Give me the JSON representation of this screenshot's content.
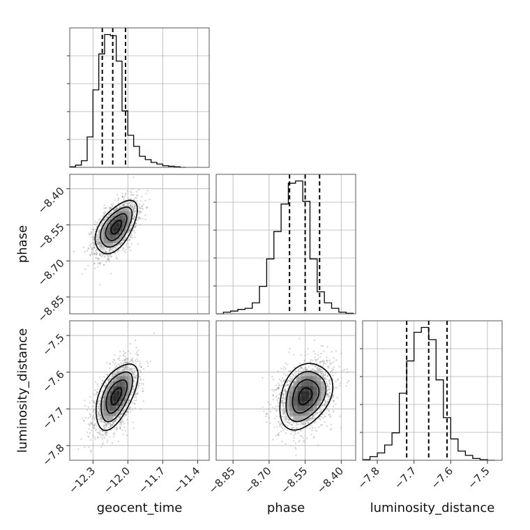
{
  "chart_data": {
    "type": "corner",
    "parameters": [
      {
        "name": "geocent_time",
        "label": "geocent_time",
        "range": [
          -12.5,
          -11.3
        ],
        "ticks": [
          -12.3,
          -12.0,
          -11.7,
          -11.4
        ],
        "tick_labels": [
          "−12.3",
          "−12.0",
          "−11.7",
          "−11.4"
        ],
        "hist_bin_edges": [
          -12.5,
          -12.45,
          -12.4,
          -12.35,
          -12.3,
          -12.25,
          -12.2,
          -12.15,
          -12.1,
          -12.05,
          -12.0,
          -11.95,
          -11.9,
          -11.85,
          -11.8,
          -11.75,
          -11.7,
          -11.65,
          -11.6,
          -11.55,
          -11.5
        ],
        "hist_values": [
          1,
          4,
          12,
          55,
          140,
          205,
          240,
          238,
          192,
          102,
          58,
          38,
          20,
          14,
          9,
          6,
          3,
          2,
          1,
          0
        ],
        "quantiles": [
          -12.22,
          -12.13,
          -12.02
        ]
      },
      {
        "name": "phase",
        "label": "phase",
        "range": [
          -8.92,
          -8.34
        ],
        "ticks": [
          -8.85,
          -8.7,
          -8.55,
          -8.4
        ],
        "tick_labels": [
          "−8.85",
          "−8.70",
          "−8.55",
          "−8.40"
        ],
        "hist_bin_edges": [
          -8.92,
          -8.89,
          -8.86,
          -8.83,
          -8.8,
          -8.77,
          -8.74,
          -8.71,
          -8.68,
          -8.65,
          -8.62,
          -8.59,
          -8.56,
          -8.53,
          -8.5,
          -8.47,
          -8.44,
          -8.41,
          -8.38,
          -8.35
        ],
        "hist_values": [
          0,
          3,
          5,
          8,
          10,
          20,
          50,
          100,
          150,
          200,
          238,
          242,
          205,
          100,
          40,
          20,
          10,
          3,
          1
        ],
        "quantiles": [
          -8.615,
          -8.55,
          -8.49
        ]
      },
      {
        "name": "luminosity_distance",
        "label": "luminosity_distance",
        "range": [
          -7.84,
          -7.46
        ],
        "ticks": [
          -7.8,
          -7.7,
          -7.6,
          -7.5
        ],
        "tick_labels": [
          "−7.8",
          "−7.7",
          "−7.6",
          "−7.5"
        ],
        "hist_bin_edges": [
          -7.84,
          -7.82,
          -7.8,
          -7.78,
          -7.76,
          -7.74,
          -7.72,
          -7.7,
          -7.68,
          -7.66,
          -7.64,
          -7.62,
          -7.6,
          -7.58,
          -7.56,
          -7.54,
          -7.52,
          -7.5,
          -7.48
        ],
        "hist_values": [
          1,
          6,
          12,
          25,
          45,
          110,
          163,
          210,
          218,
          198,
          132,
          70,
          35,
          15,
          8,
          3,
          1,
          0
        ],
        "quantiles": [
          -7.72,
          -7.66,
          -7.61
        ]
      }
    ],
    "pairs": [
      {
        "x": "geocent_time",
        "y": "phase",
        "center": [
          -12.1,
          -8.56
        ],
        "sigma": [
          0.09,
          0.055
        ],
        "correlation": 0.55
      },
      {
        "x": "geocent_time",
        "y": "luminosity_distance",
        "center": [
          -12.1,
          -7.665
        ],
        "sigma": [
          0.09,
          0.045
        ],
        "correlation": 0.55
      },
      {
        "x": "phase",
        "y": "luminosity_distance",
        "center": [
          -8.55,
          -7.665
        ],
        "sigma": [
          0.055,
          0.045
        ],
        "correlation": 0.3
      }
    ],
    "contour_levels_sigma": [
      0.5,
      1.0,
      1.5,
      2.0
    ],
    "grid": true
  }
}
